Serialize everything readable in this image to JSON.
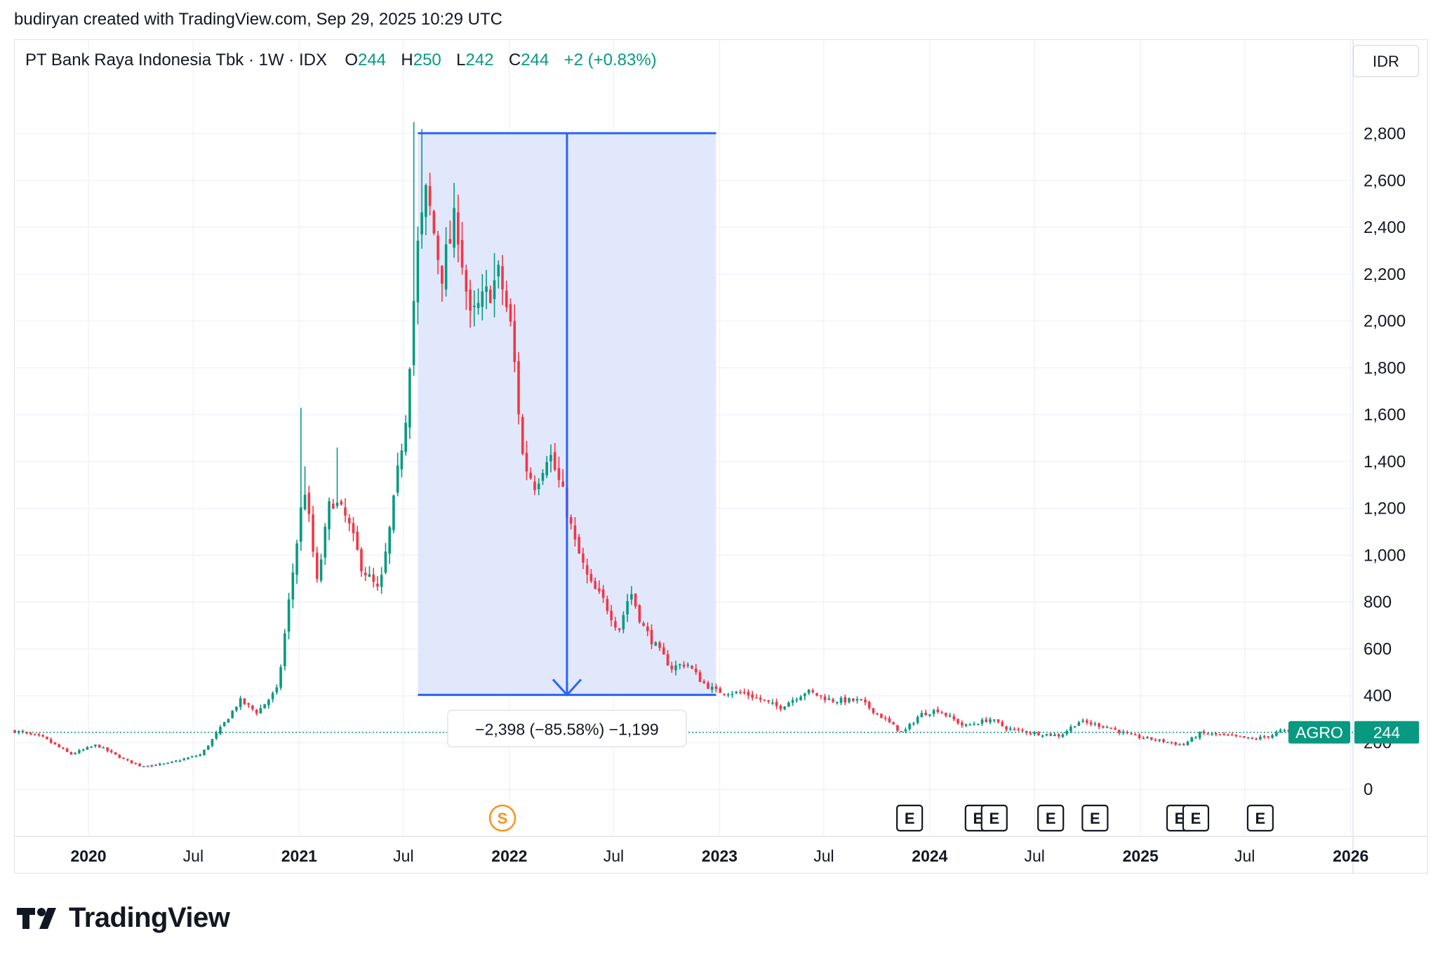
{
  "header": {
    "credit": "budiryan created with TradingView.com, Sep 29, 2025 10:29 UTC"
  },
  "legend": {
    "name": "PT Bank Raya Indonesia Tbk · 1W · IDX",
    "o_label": "O",
    "o": "244",
    "h_label": "H",
    "h": "250",
    "l_label": "L",
    "l": "242",
    "c_label": "C",
    "c": "244",
    "change": "+2 (+0.83%)"
  },
  "currency": "IDR",
  "footer": {
    "brand": "TradingView",
    "logo": "tradingview-logo-icon"
  },
  "colors": {
    "up": "#089981",
    "down": "#f23645",
    "measure": "#2962ff",
    "measure_fill": "#dde4fc",
    "event": "#f7931a"
  },
  "chart_data": {
    "type": "candlestick",
    "symbol": "AGRO",
    "last_price": "244",
    "y_ticks": [
      "0",
      "200",
      "400",
      "600",
      "800",
      "1,000",
      "1,200",
      "1,400",
      "1,600",
      "1,800",
      "2,000",
      "2,200",
      "2,400",
      "2,600",
      "2,800"
    ],
    "ylim": [
      -200,
      3200
    ],
    "xlim": [
      "2019-08-26",
      "2026-01-05"
    ],
    "x_ticks": [
      {
        "date": "2020-01-01",
        "label": "2020",
        "year": true
      },
      {
        "date": "2020-07-01",
        "label": "Jul",
        "year": false
      },
      {
        "date": "2021-01-01",
        "label": "2021",
        "year": true
      },
      {
        "date": "2021-07-01",
        "label": "Jul",
        "year": false
      },
      {
        "date": "2022-01-01",
        "label": "2022",
        "year": true
      },
      {
        "date": "2022-07-01",
        "label": "Jul",
        "year": false
      },
      {
        "date": "2023-01-01",
        "label": "2023",
        "year": true
      },
      {
        "date": "2023-07-01",
        "label": "Jul",
        "year": false
      },
      {
        "date": "2024-01-01",
        "label": "2024",
        "year": true
      },
      {
        "date": "2024-07-01",
        "label": "Jul",
        "year": false
      },
      {
        "date": "2025-01-01",
        "label": "2025",
        "year": true
      },
      {
        "date": "2025-07-01",
        "label": "Jul",
        "year": false
      },
      {
        "date": "2026-01-01",
        "label": "2026",
        "year": true
      }
    ],
    "price_path": [
      [
        "2019-08-26",
        250
      ],
      [
        "2019-10-15",
        220
      ],
      [
        "2019-12-01",
        150
      ],
      [
        "2020-01-15",
        190
      ],
      [
        "2020-03-01",
        130
      ],
      [
        "2020-04-01",
        100
      ],
      [
        "2020-05-15",
        110
      ],
      [
        "2020-06-15",
        130
      ],
      [
        "2020-07-15",
        150
      ],
      [
        "2020-08-20",
        270
      ],
      [
        "2020-09-20",
        380
      ],
      [
        "2020-10-20",
        330
      ],
      [
        "2020-11-25",
        430
      ],
      [
        "2020-12-15",
        820
      ],
      [
        "2021-01-10",
        1300
      ],
      [
        "2021-02-01",
        880
      ],
      [
        "2021-02-25",
        1250
      ],
      [
        "2021-03-25",
        1150
      ],
      [
        "2021-04-20",
        950
      ],
      [
        "2021-05-20",
        840
      ],
      [
        "2021-06-10",
        1150
      ],
      [
        "2021-07-05",
        1600
      ],
      [
        "2021-07-25",
        2300
      ],
      [
        "2021-08-10",
        2550
      ],
      [
        "2021-09-05",
        2200
      ],
      [
        "2021-10-01",
        2450
      ],
      [
        "2021-10-25",
        2000
      ],
      [
        "2021-11-20",
        2100
      ],
      [
        "2021-12-15",
        2200
      ],
      [
        "2022-01-05",
        1950
      ],
      [
        "2022-01-25",
        1400
      ],
      [
        "2022-02-15",
        1300
      ],
      [
        "2022-03-10",
        1450
      ],
      [
        "2022-04-05",
        1250
      ],
      [
        "2022-04-25",
        1050
      ],
      [
        "2022-05-20",
        880
      ],
      [
        "2022-06-15",
        800
      ],
      [
        "2022-07-10",
        680
      ],
      [
        "2022-07-30",
        850
      ],
      [
        "2022-08-20",
        700
      ],
      [
        "2022-09-15",
        600
      ],
      [
        "2022-10-10",
        520
      ],
      [
        "2022-11-05",
        540
      ],
      [
        "2022-12-01",
        460
      ],
      [
        "2022-12-25",
        420
      ],
      [
        "2023-02-15",
        410
      ],
      [
        "2023-04-15",
        350
      ],
      [
        "2023-06-01",
        420
      ],
      [
        "2023-07-15",
        380
      ],
      [
        "2023-09-01",
        380
      ],
      [
        "2023-10-15",
        300
      ],
      [
        "2023-11-15",
        240
      ],
      [
        "2023-12-15",
        320
      ],
      [
        "2024-01-15",
        340
      ],
      [
        "2024-03-01",
        270
      ],
      [
        "2024-04-15",
        300
      ],
      [
        "2024-05-15",
        260
      ],
      [
        "2024-07-01",
        240
      ],
      [
        "2024-08-15",
        230
      ],
      [
        "2024-09-15",
        290
      ],
      [
        "2024-11-01",
        270
      ],
      [
        "2024-12-15",
        230
      ],
      [
        "2025-02-01",
        210
      ],
      [
        "2025-03-15",
        190
      ],
      [
        "2025-04-15",
        240
      ],
      [
        "2025-06-01",
        230
      ],
      [
        "2025-07-15",
        215
      ],
      [
        "2025-08-15",
        230
      ],
      [
        "2025-09-01",
        250
      ],
      [
        "2025-09-29",
        244
      ]
    ],
    "spikes": [
      [
        "2021-01-04",
        1630
      ],
      [
        "2021-01-11",
        1380
      ],
      [
        "2021-03-08",
        1460
      ],
      [
        "2021-07-19",
        2850
      ],
      [
        "2021-08-02",
        2820
      ],
      [
        "2021-09-27",
        2590
      ],
      [
        "2021-10-18",
        1780
      ],
      [
        "2021-12-06",
        2290
      ]
    ],
    "measure": {
      "start_date": "2021-07-26",
      "end_date": "2022-12-26",
      "high": 2802,
      "low": 404,
      "label": "−2,398 (−85.58%) −1,199"
    },
    "events": [
      {
        "date": "2021-12-20",
        "type": "S"
      },
      {
        "date": "2023-11-27",
        "type": "E"
      },
      {
        "date": "2024-03-25",
        "type": "E"
      },
      {
        "date": "2024-04-22",
        "type": "E"
      },
      {
        "date": "2024-07-29",
        "type": "E"
      },
      {
        "date": "2024-10-14",
        "type": "E"
      },
      {
        "date": "2025-03-10",
        "type": "E"
      },
      {
        "date": "2025-04-07",
        "type": "E"
      },
      {
        "date": "2025-07-28",
        "type": "E"
      }
    ]
  }
}
